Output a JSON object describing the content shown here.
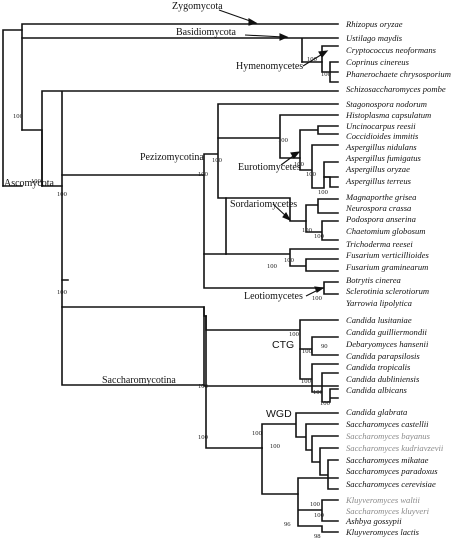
{
  "tips": [
    {
      "id": "rhizopus",
      "label": "Rhizopus oryzae",
      "color": "#111111"
    },
    {
      "id": "ustilago",
      "label": "Ustilago maydis",
      "color": "#111111"
    },
    {
      "id": "cryptococcus",
      "label": "Cryptococcus neoformans",
      "color": "#111111"
    },
    {
      "id": "coprinus",
      "label": "Coprinus cinereus",
      "color": "#111111"
    },
    {
      "id": "phanerochaete",
      "label": "Phanerochaete chrysosporium",
      "color": "#111111"
    },
    {
      "id": "schizo",
      "label": "Schizosaccharomyces pombe",
      "color": "#111111"
    },
    {
      "id": "stagonospora",
      "label": "Stagonospora nodorum",
      "color": "#111111"
    },
    {
      "id": "histoplasma",
      "label": "Histoplasma capsulatum",
      "color": "#111111"
    },
    {
      "id": "uncinocarpus",
      "label": "Uncinocarpus reesii",
      "color": "#111111"
    },
    {
      "id": "coccidioides",
      "label": "Coccidioides immitis",
      "color": "#111111"
    },
    {
      "id": "anidulans",
      "label": "Aspergillus nidulans",
      "color": "#111111"
    },
    {
      "id": "afumigatus",
      "label": "Aspergillus fumigatus",
      "color": "#111111"
    },
    {
      "id": "aoryzae",
      "label": "Aspergillus oryzae",
      "color": "#111111"
    },
    {
      "id": "aterreus",
      "label": "Aspergillus terreus",
      "color": "#111111"
    },
    {
      "id": "magnaporthe",
      "label": "Magnaporthe grisea",
      "color": "#111111"
    },
    {
      "id": "neurospora",
      "label": "Neurospora crassa",
      "color": "#111111"
    },
    {
      "id": "podospora",
      "label": "Podospora anserina",
      "color": "#111111"
    },
    {
      "id": "chaetomium",
      "label": "Chaetomium globosum",
      "color": "#111111"
    },
    {
      "id": "trichoderma",
      "label": "Trichoderma reesei",
      "color": "#111111"
    },
    {
      "id": "fverticillioides",
      "label": "Fusarium verticillioides",
      "color": "#111111"
    },
    {
      "id": "fgraminearum",
      "label": "Fusarium graminearum",
      "color": "#111111"
    },
    {
      "id": "botrytis",
      "label": "Botrytis cinerea",
      "color": "#111111"
    },
    {
      "id": "sclerotinia",
      "label": "Sclerotinia sclerotiorum",
      "color": "#111111"
    },
    {
      "id": "yarrowia",
      "label": "Yarrowia lipolytica",
      "color": "#111111"
    },
    {
      "id": "clusitaniae",
      "label": "Candida lusitaniae",
      "color": "#111111"
    },
    {
      "id": "cguilliermondii",
      "label": "Candida guilliermondii",
      "color": "#111111"
    },
    {
      "id": "debaryomyces",
      "label": "Debaryomyces hansenii",
      "color": "#111111"
    },
    {
      "id": "cparapsilosis",
      "label": "Candida parapsilosis",
      "color": "#111111"
    },
    {
      "id": "ctropicalis",
      "label": "Candida tropicalis",
      "color": "#111111"
    },
    {
      "id": "cdubliniensis",
      "label": "Candida dubliniensis",
      "color": "#111111"
    },
    {
      "id": "calbicans",
      "label": "Candida albicans",
      "color": "#111111"
    },
    {
      "id": "cglabrata",
      "label": "Candida glabrata",
      "color": "#111111"
    },
    {
      "id": "scastellii",
      "label": "Saccharomyces castellii",
      "color": "#111111"
    },
    {
      "id": "sbayanus",
      "label": "Saccharomyces bayanus",
      "color": "#8a8a8a"
    },
    {
      "id": "skudriavzevii",
      "label": "Saccharomyces kudriavzevii",
      "color": "#8a8a8a"
    },
    {
      "id": "smikatae",
      "label": "Saccharomyces mikatae",
      "color": "#111111"
    },
    {
      "id": "sparadoxus",
      "label": "Saccharomyces paradoxus",
      "color": "#111111"
    },
    {
      "id": "scerevisiae",
      "label": "Saccharomyces cerevisiae",
      "color": "#111111"
    },
    {
      "id": "kwaltii",
      "label": "Kluyveromyces waltii",
      "color": "#8a8a8a"
    },
    {
      "id": "skluyveri",
      "label": "Saccharomyces kluyveri",
      "color": "#8a8a8a"
    },
    {
      "id": "ashbya",
      "label": "Ashbya gossypii",
      "color": "#111111"
    },
    {
      "id": "klactis",
      "label": "Kluyveromyces lactis",
      "color": "#111111"
    }
  ],
  "clades": [
    {
      "id": "zygomycota",
      "label": "Zygomycota"
    },
    {
      "id": "basidiomycota",
      "label": "Basidiomycota"
    },
    {
      "id": "hymenomycetes",
      "label": "Hymenomycetes"
    },
    {
      "id": "pezizomycotina",
      "label": "Pezizomycotina"
    },
    {
      "id": "eurotiomycetes",
      "label": "Eurotiomycetes"
    },
    {
      "id": "sordariomycetes",
      "label": "Sordariomycetes"
    },
    {
      "id": "ascomycota",
      "label": "Ascomycota"
    },
    {
      "id": "leotiomycetes",
      "label": "Leotiomycetes"
    },
    {
      "id": "ctg",
      "label": "CTG"
    },
    {
      "id": "saccharomycotina",
      "label": "Saccharomycotina"
    },
    {
      "id": "wgd",
      "label": "WGD"
    }
  ],
  "support": [
    "100",
    "100",
    "100",
    "100",
    "100",
    "100",
    "100",
    "100",
    "100",
    "100",
    "100",
    "100",
    "100",
    "100",
    "100",
    "100",
    "100",
    "100",
    "100",
    "100",
    "100",
    "100",
    "100",
    "90",
    "100",
    "100",
    "100",
    "100",
    "96",
    "100",
    "98"
  ]
}
